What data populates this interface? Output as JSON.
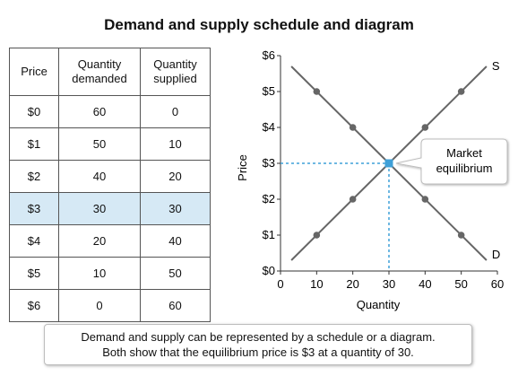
{
  "title": "Demand and supply schedule and diagram",
  "schedule": {
    "headers": [
      "Price",
      "Quantity demanded",
      "Quantity supplied"
    ],
    "rows": [
      [
        "$0",
        "60",
        "0"
      ],
      [
        "$1",
        "50",
        "10"
      ],
      [
        "$2",
        "40",
        "20"
      ],
      [
        "$3",
        "30",
        "30"
      ],
      [
        "$4",
        "20",
        "40"
      ],
      [
        "$5",
        "10",
        "50"
      ],
      [
        "$6",
        "0",
        "60"
      ]
    ],
    "highlight_row": 3,
    "highlight_color": "#d6e9f5"
  },
  "chart_data": {
    "type": "line",
    "xlabel": "Quantity",
    "ylabel": "Price",
    "xlim": [
      0,
      60
    ],
    "ylim": [
      0,
      6
    ],
    "x_ticks": [
      0,
      10,
      20,
      30,
      40,
      50,
      60
    ],
    "y_ticks": [
      0,
      1,
      2,
      3,
      4,
      5,
      6
    ],
    "y_tick_labels": [
      "$0",
      "$1",
      "$2",
      "$3",
      "$4",
      "$5",
      "$6"
    ],
    "series": [
      {
        "name": "S",
        "color": "#666666",
        "line": [
          [
            3,
            0.3
          ],
          [
            57,
            5.7
          ]
        ],
        "points": [
          [
            10,
            1
          ],
          [
            20,
            2
          ],
          [
            30,
            3
          ],
          [
            40,
            4
          ],
          [
            50,
            5
          ]
        ]
      },
      {
        "name": "D",
        "color": "#666666",
        "line": [
          [
            3,
            5.7
          ],
          [
            57,
            0.3
          ]
        ],
        "points": [
          [
            10,
            5
          ],
          [
            20,
            4
          ],
          [
            30,
            3
          ],
          [
            40,
            2
          ],
          [
            50,
            1
          ]
        ]
      }
    ],
    "equilibrium": {
      "x": 30,
      "y": 3,
      "label": [
        "Market",
        "equilibrium"
      ],
      "color": "#3fa0d8"
    },
    "grid": false
  },
  "caption": {
    "line1": "Demand and supply can be represented by a schedule or a diagram.",
    "line2": "Both show that the equilibrium price is $3 at a quantity of 30."
  }
}
